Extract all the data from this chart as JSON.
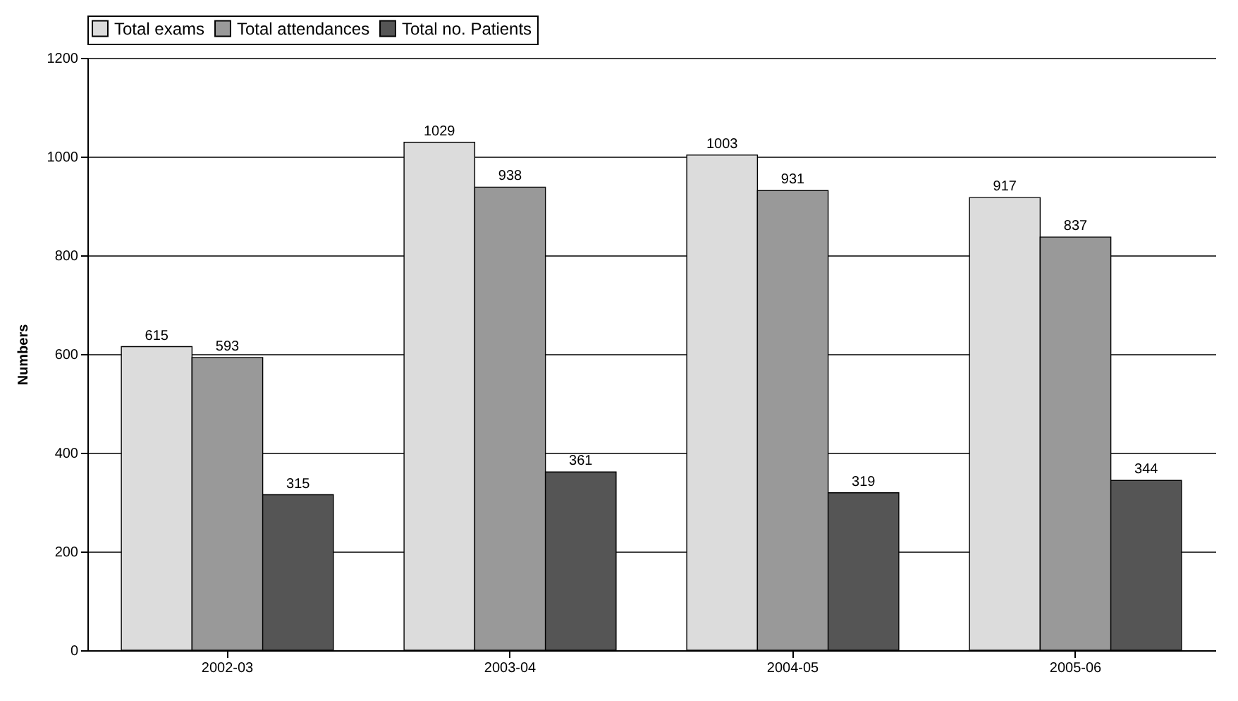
{
  "chart_data": {
    "type": "bar",
    "ylabel": "Numbers",
    "categories": [
      "2002-03",
      "2003-04",
      "2004-05",
      "2005-06"
    ],
    "series": [
      {
        "name": "Total exams",
        "color": "#dcdcdc",
        "values": [
          615,
          1029,
          1003,
          917
        ]
      },
      {
        "name": "Total attendances",
        "color": "#999999",
        "values": [
          593,
          938,
          931,
          837
        ]
      },
      {
        "name": "Total no. Patients",
        "color": "#555555",
        "values": [
          315,
          361,
          319,
          344
        ]
      }
    ],
    "ylim": [
      0,
      1200
    ],
    "yticks": [
      0,
      200,
      400,
      600,
      800,
      1000,
      1200
    ],
    "grid": "y",
    "legend": "top",
    "data_labels": true
  }
}
